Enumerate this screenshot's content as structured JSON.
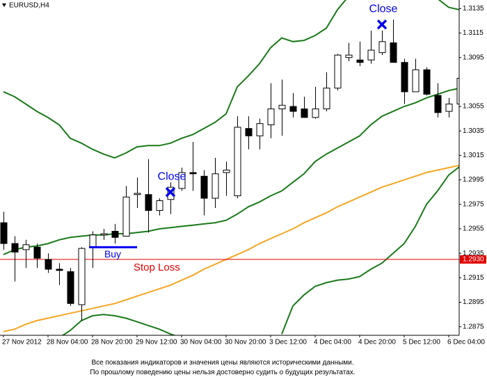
{
  "chart_data": {
    "type": "candlestick",
    "title": "EURUSD,H4",
    "categories": [
      "27 Nov 2012",
      null,
      null,
      null,
      "28 Nov 04:00",
      null,
      null,
      null,
      "28 Nov 20:00",
      null,
      null,
      null,
      "29 Nov 12:00",
      null,
      null,
      null,
      "30 Nov 04:00",
      null,
      null,
      null,
      "30 Nov 20:00",
      null,
      null,
      null,
      "3 Dec 12:00",
      null,
      null,
      null,
      "4 Dec 04:00",
      null,
      null,
      null,
      "4 Dec 20:00",
      null,
      null,
      null,
      "5 Dec 12:00",
      null,
      null,
      null,
      "6 Dec 04:00",
      null
    ],
    "open": [
      1.296,
      1.2943,
      1.2938,
      1.294,
      1.293,
      1.2922,
      1.292,
      1.2893,
      1.294,
      1.295,
      1.2953,
      1.2949,
      1.2983,
      1.2983,
      1.297,
      1.2979,
      1.2988,
      1.3001,
      1.2998,
      1.298,
      1.3001,
      1.2982,
      1.3037,
      1.3031,
      1.304,
      1.3053,
      1.3055,
      1.3053,
      1.3046,
      1.3053,
      1.307,
      1.3095,
      1.3093,
      1.3093,
      1.3099,
      1.3107,
      1.3091,
      1.3067,
      1.3085,
      1.3064,
      1.3051,
      1.3057
    ],
    "high": [
      1.2969,
      1.2949,
      1.2946,
      1.2943,
      1.2935,
      1.2927,
      1.2923,
      1.294,
      1.2953,
      1.2955,
      1.2959,
      1.299,
      1.2997,
      1.3012,
      1.298,
      1.2993,
      1.3005,
      1.3026,
      1.3003,
      1.3013,
      1.301,
      1.3047,
      1.3047,
      1.3045,
      1.3074,
      1.3077,
      1.3066,
      1.3063,
      1.3071,
      1.3083,
      1.3098,
      1.3107,
      1.3108,
      1.3117,
      1.3117,
      1.3126,
      1.3094,
      1.3094,
      1.3087,
      1.3074,
      1.3062,
      1.3083
    ],
    "low": [
      1.2938,
      1.2912,
      1.2923,
      1.2923,
      1.2919,
      1.2909,
      1.2892,
      1.288,
      1.2923,
      1.2946,
      1.2943,
      1.2949,
      1.2972,
      1.2952,
      1.2966,
      1.2967,
      1.2986,
      1.2986,
      1.2966,
      1.2972,
      1.2982,
      1.298,
      1.302,
      1.302,
      1.3029,
      1.3031,
      1.3046,
      1.3046,
      1.3045,
      1.3051,
      1.3068,
      1.3092,
      1.3088,
      1.309,
      1.3097,
      1.3091,
      1.3057,
      1.3067,
      1.3064,
      1.3046,
      1.3046,
      1.304
    ],
    "close": [
      1.2943,
      1.2936,
      1.2942,
      1.2931,
      1.2922,
      1.2921,
      1.2894,
      1.2939,
      1.295,
      1.2951,
      1.2948,
      1.2981,
      1.2984,
      1.297,
      1.2978,
      1.2989,
      1.3001,
      1.3,
      1.298,
      1.3,
      1.3003,
      1.3038,
      1.3031,
      1.3041,
      1.3053,
      1.3056,
      1.3051,
      1.3046,
      1.3053,
      1.307,
      1.3097,
      1.3097,
      1.3091,
      1.3101,
      1.3108,
      1.3091,
      1.3067,
      1.3085,
      1.3065,
      1.305,
      1.3057,
      1.3078
    ],
    "up_color": "#ffffff",
    "down_color": "#000000",
    "lines": [
      {
        "color": "#1a7a1a",
        "values": [
          1.3067,
          1.3063,
          1.3057,
          1.3051,
          1.3046,
          1.304,
          1.3029,
          1.3025,
          1.302,
          1.3016,
          1.3013,
          1.3017,
          1.3022,
          1.3023,
          1.3023,
          1.3025,
          1.3029,
          1.3032,
          1.3037,
          1.3042,
          1.3049,
          1.3071,
          1.308,
          1.309,
          1.3103,
          1.3111,
          1.3108,
          1.3109,
          1.3113,
          1.3119,
          1.3134,
          1.3145,
          null,
          null,
          null,
          null,
          null,
          null,
          null,
          1.3143,
          1.3136,
          1.3134
        ]
      },
      {
        "color": "#1a7a1a",
        "values": [
          1.2934,
          1.2938,
          1.294,
          1.2941,
          1.2943,
          1.2946,
          1.2948,
          1.2949,
          1.295,
          1.295,
          1.2951,
          1.2951,
          1.2952,
          1.2953,
          1.2955,
          1.2956,
          1.2957,
          1.2958,
          1.2959,
          1.296,
          1.2962,
          1.2967,
          1.2973,
          1.2977,
          1.2982,
          1.2986,
          1.2993,
          1.3,
          1.301,
          1.3016,
          1.3021,
          1.3026,
          1.3031,
          1.304,
          1.3047,
          1.3051,
          1.3055,
          1.3058,
          1.3062,
          1.3065,
          1.3068,
          1.307
        ]
      },
      {
        "color": "#1a7a1a",
        "values": [
          null,
          null,
          null,
          null,
          null,
          1.2866,
          1.2872,
          1.288,
          1.2884,
          1.2885,
          1.2884,
          1.2882,
          1.2879,
          1.2876,
          1.2873,
          1.2869,
          1.2866,
          null,
          null,
          null,
          null,
          null,
          null,
          null,
          null,
          1.2869,
          1.2892,
          1.2901,
          1.2908,
          1.2911,
          1.2913,
          1.2914,
          1.2916,
          1.2922,
          1.2927,
          1.2935,
          1.2943,
          1.2957,
          1.2975,
          1.2986,
          1.2999,
          1.3006
        ]
      },
      {
        "color": "#f5a623",
        "values": [
          1.2871,
          1.2873,
          1.2877,
          1.288,
          1.2882,
          1.2884,
          1.2886,
          1.2888,
          1.289,
          1.2892,
          1.2894,
          1.2897,
          1.29,
          1.2903,
          1.2906,
          1.2909,
          1.2913,
          1.2917,
          1.2922,
          1.2926,
          1.293,
          1.2934,
          1.2938,
          1.2943,
          1.2947,
          1.2951,
          1.2955,
          1.296,
          1.2964,
          1.2968,
          1.2973,
          1.2977,
          1.2981,
          1.2985,
          1.2989,
          1.2992,
          1.2995,
          1.2998,
          1.3001,
          1.3003,
          1.3005,
          1.3007
        ]
      }
    ],
    "ylim": [
      1.2868,
      1.3142
    ],
    "yticks": [
      1.3135,
      1.3115,
      1.3095,
      1.3055,
      1.3035,
      1.3015,
      1.2995,
      1.2975,
      1.2955,
      1.2935,
      1.2915,
      1.2895,
      1.2875
    ],
    "buy": {
      "label": "Buy",
      "value": 1.294,
      "from": 8,
      "to": 12,
      "color": "#0000ee"
    },
    "close_markers": [
      {
        "label": "Close",
        "index": 15,
        "value": 1.2985,
        "color": "#0000ee"
      },
      {
        "label": "Close",
        "index": 34,
        "value": 1.3122,
        "color": "#0000ee"
      }
    ],
    "stop_loss": {
      "label": "Stop Loss",
      "value": 1.293,
      "value_label": "1.2930",
      "color": "#e00000"
    }
  },
  "disclaimer": [
    "Все показания индикаторов и значения цены являются историческими данными.",
    "По прошлому поведению цены нельзя достоверно судить о будущих результатах."
  ]
}
